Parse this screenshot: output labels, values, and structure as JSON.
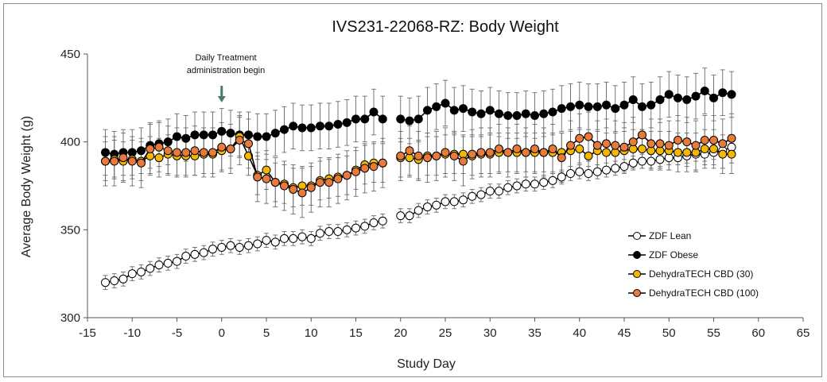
{
  "chart_data": {
    "type": "line",
    "title": "IVS231-22068-RZ: Body Weight",
    "xlabel": "Study Day",
    "ylabel": "Average Body Weight (g)",
    "xlim": [
      -15,
      65
    ],
    "ylim": [
      300,
      450
    ],
    "xticks": [
      -15,
      -10,
      -5,
      0,
      5,
      10,
      15,
      20,
      25,
      30,
      35,
      40,
      45,
      50,
      55,
      60,
      65
    ],
    "yticks": [
      300,
      350,
      400,
      450
    ],
    "grid": false,
    "legend_position": "lower-right",
    "annotation": {
      "text_lines": [
        "Daily Treatment",
        "administration begin"
      ],
      "x": 0,
      "arrow_color": "#4d7a68"
    },
    "x_segments": [
      [
        -13,
        -12,
        -11,
        -10,
        -9,
        -8,
        -7,
        -6,
        -5,
        -4,
        -3,
        -2,
        -1,
        0,
        1,
        2,
        3,
        4,
        5,
        6,
        7,
        8,
        9,
        10,
        11,
        12,
        13,
        14,
        15,
        16,
        17,
        18
      ],
      [
        20,
        21,
        22,
        23,
        24,
        25,
        26,
        27,
        28,
        29,
        30,
        31,
        32,
        33,
        34,
        35,
        36,
        37,
        38,
        39,
        40,
        41,
        42,
        43,
        44,
        45,
        46,
        47,
        48,
        49,
        50,
        51,
        52,
        53,
        54,
        55,
        56,
        57
      ]
    ],
    "series": [
      {
        "name": "ZDF Lean",
        "marker_fill": "#ffffff",
        "line_color": "#000000",
        "error": 4,
        "values": [
          [
            320,
            321,
            322,
            325,
            326,
            328,
            330,
            331,
            332,
            335,
            336,
            337,
            339,
            340,
            341,
            340,
            341,
            342,
            344,
            343,
            345,
            345,
            346,
            345,
            348,
            349,
            349,
            350,
            351,
            352,
            354,
            355
          ],
          [
            358,
            358,
            361,
            363,
            364,
            366,
            366,
            367,
            369,
            370,
            372,
            372,
            374,
            375,
            376,
            376,
            377,
            378,
            380,
            382,
            383,
            382,
            383,
            384,
            385,
            386,
            388,
            389,
            389,
            390,
            391,
            391,
            392,
            393,
            393,
            394,
            395,
            397
          ]
        ]
      },
      {
        "name": "ZDF Obese",
        "marker_fill": "#000000",
        "line_color": "#000000",
        "error": 13,
        "values": [
          [
            394,
            393,
            394,
            394,
            395,
            398,
            399,
            400,
            403,
            402,
            404,
            404,
            404,
            406,
            405,
            404,
            404,
            403,
            403,
            405,
            407,
            409,
            408,
            408,
            409,
            409,
            410,
            411,
            413,
            413,
            417,
            413
          ],
          [
            413,
            412,
            413,
            418,
            420,
            422,
            418,
            419,
            417,
            416,
            418,
            416,
            415,
            415,
            416,
            415,
            416,
            417,
            419,
            420,
            421,
            420,
            420,
            421,
            419,
            421,
            424,
            420,
            421,
            424,
            427,
            425,
            424,
            426,
            429,
            425,
            428,
            427
          ]
        ]
      },
      {
        "name": "DehydraTECH CBD (30)",
        "marker_fill": "#f5b800",
        "line_color": "#000000",
        "error": 11,
        "values": [
          [
            389,
            390,
            389,
            390,
            389,
            392,
            391,
            393,
            392,
            392,
            392,
            393,
            393,
            395,
            396,
            403,
            392,
            381,
            384,
            377,
            376,
            374,
            375,
            375,
            378,
            379,
            380,
            381,
            384,
            387,
            388,
            388
          ],
          [
            391,
            391,
            390,
            392,
            392,
            393,
            393,
            393,
            392,
            393,
            393,
            394,
            394,
            394,
            394,
            394,
            394,
            394,
            394,
            395,
            396,
            392,
            395,
            394,
            394,
            395,
            396,
            396,
            395,
            395,
            395,
            394,
            394,
            394,
            396,
            396,
            393,
            393
          ]
        ]
      },
      {
        "name": "DehydraTECH CBD (100)",
        "marker_fill": "#e87a3c",
        "line_color": "#000000",
        "error": 14,
        "values": [
          [
            389,
            389,
            391,
            389,
            388,
            396,
            397,
            395,
            394,
            394,
            395,
            394,
            394,
            397,
            396,
            401,
            399,
            380,
            379,
            377,
            375,
            373,
            371,
            374,
            377,
            377,
            379,
            381,
            383,
            385,
            386,
            388
          ],
          [
            392,
            395,
            392,
            391,
            392,
            394,
            392,
            389,
            393,
            394,
            394,
            396,
            394,
            396,
            394,
            396,
            394,
            396,
            391,
            398,
            402,
            403,
            398,
            399,
            398,
            397,
            400,
            404,
            399,
            399,
            398,
            401,
            400,
            398,
            401,
            401,
            399,
            402
          ]
        ]
      }
    ]
  }
}
